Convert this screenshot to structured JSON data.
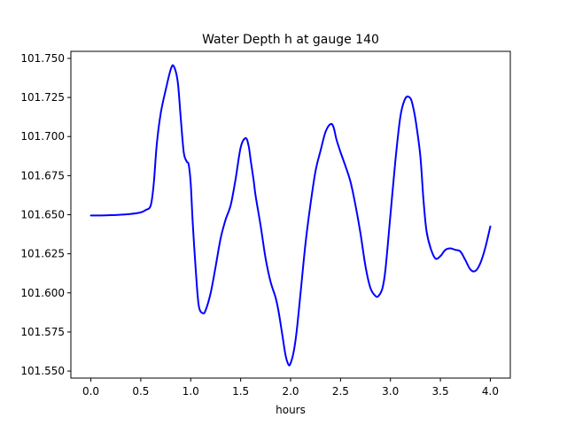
{
  "chart_data": {
    "type": "line",
    "title": "Water Depth h at gauge 140",
    "xlabel": "hours",
    "ylabel": "",
    "xlim": [
      -0.2,
      4.2
    ],
    "ylim": [
      101.5455,
      101.7545
    ],
    "xticks": [
      0.0,
      0.5,
      1.0,
      1.5,
      2.0,
      2.5,
      3.0,
      3.5,
      4.0
    ],
    "xtick_labels": [
      "0.0",
      "0.5",
      "1.0",
      "1.5",
      "2.0",
      "2.5",
      "3.0",
      "3.5",
      "4.0"
    ],
    "yticks": [
      101.55,
      101.575,
      101.6,
      101.625,
      101.65,
      101.675,
      101.7,
      101.725,
      101.75
    ],
    "ytick_labels": [
      "101.550",
      "101.575",
      "101.600",
      "101.625",
      "101.650",
      "101.675",
      "101.700",
      "101.725",
      "101.750"
    ],
    "grid": false,
    "series": [
      {
        "color": "#0000ff",
        "x": [
          0.0,
          0.1,
          0.2,
          0.3,
          0.4,
          0.5,
          0.55,
          0.6,
          0.63,
          0.66,
          0.7,
          0.75,
          0.8,
          0.83,
          0.87,
          0.9,
          0.93,
          0.96,
          0.98,
          1.0,
          1.02,
          1.05,
          1.08,
          1.12,
          1.15,
          1.2,
          1.25,
          1.3,
          1.35,
          1.4,
          1.45,
          1.5,
          1.55,
          1.58,
          1.6,
          1.63,
          1.65,
          1.7,
          1.75,
          1.8,
          1.85,
          1.88,
          1.92,
          1.95,
          1.98,
          2.0,
          2.03,
          2.06,
          2.1,
          2.15,
          2.2,
          2.25,
          2.3,
          2.35,
          2.4,
          2.43,
          2.46,
          2.5,
          2.55,
          2.6,
          2.65,
          2.7,
          2.75,
          2.8,
          2.85,
          2.88,
          2.92,
          2.95,
          3.0,
          3.05,
          3.1,
          3.15,
          3.2,
          3.23,
          3.26,
          3.3,
          3.33,
          3.36,
          3.4,
          3.45,
          3.5,
          3.55,
          3.6,
          3.65,
          3.7,
          3.75,
          3.8,
          3.85,
          3.9,
          3.95,
          4.0
        ],
        "y": [
          101.6495,
          101.6495,
          101.6497,
          101.65,
          101.6505,
          101.6515,
          101.653,
          101.656,
          101.67,
          101.695,
          101.715,
          101.73,
          101.743,
          101.745,
          101.735,
          101.712,
          101.69,
          101.684,
          101.682,
          101.67,
          101.645,
          101.615,
          101.592,
          101.587,
          101.589,
          101.6,
          101.617,
          101.635,
          101.647,
          101.656,
          101.673,
          101.693,
          101.699,
          101.694,
          101.685,
          101.672,
          101.662,
          101.643,
          101.622,
          101.607,
          101.597,
          101.588,
          101.572,
          101.56,
          101.554,
          101.555,
          101.562,
          101.575,
          101.6,
          101.632,
          101.657,
          101.678,
          101.691,
          101.703,
          101.708,
          101.706,
          101.698,
          101.69,
          101.681,
          101.671,
          101.656,
          101.638,
          101.617,
          101.603,
          101.598,
          101.598,
          101.603,
          101.615,
          101.65,
          101.685,
          101.713,
          101.7245,
          101.7245,
          101.718,
          101.707,
          101.687,
          101.66,
          101.64,
          101.629,
          101.622,
          101.6235,
          101.6275,
          101.6285,
          101.6275,
          101.6265,
          101.621,
          101.615,
          101.614,
          101.619,
          101.629,
          101.6425
        ]
      }
    ]
  }
}
